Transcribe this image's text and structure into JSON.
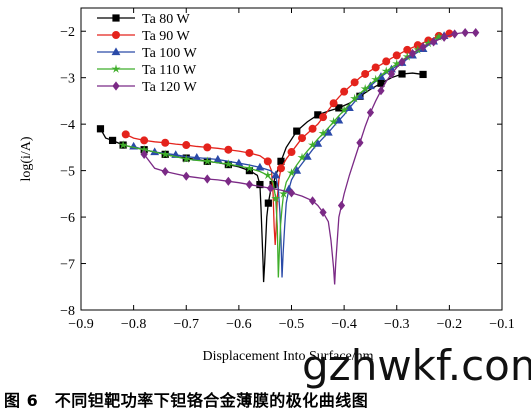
{
  "chart_data": {
    "type": "line",
    "title": "",
    "xlabel": "Displacement Into Surface/nm",
    "ylabel": "log(i/A)",
    "xlim": [
      -0.9,
      -0.1
    ],
    "ylim": [
      -8,
      -1.5
    ],
    "xticks": [
      -0.9,
      -0.8,
      -0.7,
      -0.6,
      -0.5,
      -0.4,
      -0.3,
      -0.2,
      -0.1
    ],
    "yticks": [
      -8,
      -7,
      -6,
      -5,
      -4,
      -3,
      -2
    ],
    "legend_position": "top-left",
    "series": [
      {
        "name": "Ta 80 W",
        "color": "#000000",
        "marker": "square",
        "x": [
          -0.863,
          -0.853,
          -0.84,
          -0.83,
          -0.82,
          -0.8,
          -0.78,
          -0.76,
          -0.74,
          -0.72,
          -0.7,
          -0.68,
          -0.66,
          -0.64,
          -0.62,
          -0.6,
          -0.58,
          -0.565,
          -0.56,
          -0.558,
          -0.556,
          -0.554,
          -0.553,
          -0.551,
          -0.549,
          -0.547,
          -0.544,
          -0.54,
          -0.535,
          -0.53,
          -0.52,
          -0.51,
          -0.49,
          -0.47,
          -0.45,
          -0.43,
          -0.41,
          -0.39,
          -0.37,
          -0.35,
          -0.33,
          -0.31,
          -0.29,
          -0.27,
          -0.25
        ],
        "y": [
          -4.1,
          -4.3,
          -4.35,
          -4.4,
          -4.45,
          -4.5,
          -4.55,
          -4.6,
          -4.65,
          -4.7,
          -4.73,
          -4.76,
          -4.8,
          -4.83,
          -4.87,
          -4.92,
          -5.0,
          -5.1,
          -5.3,
          -5.8,
          -6.4,
          -7.0,
          -7.4,
          -7.0,
          -6.5,
          -6.0,
          -5.7,
          -5.45,
          -5.3,
          -5.1,
          -4.8,
          -4.5,
          -4.15,
          -3.95,
          -3.8,
          -3.72,
          -3.65,
          -3.55,
          -3.4,
          -3.25,
          -3.12,
          -3.0,
          -2.92,
          -2.9,
          -2.93
        ]
      },
      {
        "name": "Ta 90 W",
        "color": "#e4231c",
        "marker": "circle",
        "x": [
          -0.815,
          -0.8,
          -0.78,
          -0.76,
          -0.74,
          -0.72,
          -0.7,
          -0.68,
          -0.66,
          -0.64,
          -0.62,
          -0.6,
          -0.58,
          -0.56,
          -0.545,
          -0.538,
          -0.535,
          -0.533,
          -0.531,
          -0.529,
          -0.527,
          -0.524,
          -0.52,
          -0.51,
          -0.5,
          -0.49,
          -0.48,
          -0.47,
          -0.46,
          -0.45,
          -0.44,
          -0.43,
          -0.42,
          -0.41,
          -0.4,
          -0.39,
          -0.38,
          -0.37,
          -0.36,
          -0.35,
          -0.34,
          -0.33,
          -0.32,
          -0.31,
          -0.3,
          -0.29,
          -0.28,
          -0.27,
          -0.26,
          -0.25,
          -0.24,
          -0.23,
          -0.22,
          -0.21,
          -0.2
        ],
        "y": [
          -4.22,
          -4.3,
          -4.35,
          -4.38,
          -4.4,
          -4.43,
          -4.45,
          -4.48,
          -4.5,
          -4.52,
          -4.55,
          -4.58,
          -4.62,
          -4.68,
          -4.8,
          -5.0,
          -5.5,
          -6.2,
          -6.6,
          -6.2,
          -5.6,
          -5.2,
          -4.95,
          -4.75,
          -4.6,
          -4.45,
          -4.3,
          -4.2,
          -4.1,
          -4.0,
          -3.85,
          -3.7,
          -3.55,
          -3.42,
          -3.3,
          -3.2,
          -3.1,
          -3.0,
          -2.92,
          -2.85,
          -2.78,
          -2.72,
          -2.65,
          -2.58,
          -2.52,
          -2.46,
          -2.4,
          -2.35,
          -2.3,
          -2.25,
          -2.2,
          -2.15,
          -2.1,
          -2.07,
          -2.05
        ]
      },
      {
        "name": "Ta 100 W",
        "color": "#2a4aa8",
        "marker": "triangle",
        "x": [
          -0.8,
          -0.78,
          -0.76,
          -0.74,
          -0.72,
          -0.7,
          -0.68,
          -0.66,
          -0.64,
          -0.62,
          -0.6,
          -0.58,
          -0.56,
          -0.54,
          -0.53,
          -0.525,
          -0.522,
          -0.52,
          -0.518,
          -0.516,
          -0.513,
          -0.51,
          -0.505,
          -0.5,
          -0.49,
          -0.48,
          -0.47,
          -0.46,
          -0.45,
          -0.44,
          -0.43,
          -0.42,
          -0.41,
          -0.4,
          -0.39,
          -0.38,
          -0.37,
          -0.36,
          -0.35,
          -0.34,
          -0.33,
          -0.32,
          -0.31,
          -0.3,
          -0.29,
          -0.28,
          -0.27,
          -0.26,
          -0.25,
          -0.24,
          -0.23,
          -0.22,
          -0.21
        ],
        "y": [
          -4.48,
          -4.55,
          -4.6,
          -4.63,
          -4.66,
          -4.7,
          -4.72,
          -4.74,
          -4.76,
          -4.8,
          -4.84,
          -4.88,
          -4.93,
          -5.0,
          -5.1,
          -5.4,
          -5.9,
          -6.5,
          -7.3,
          -6.8,
          -6.2,
          -5.7,
          -5.4,
          -5.2,
          -5.0,
          -4.85,
          -4.7,
          -4.55,
          -4.42,
          -4.3,
          -4.18,
          -4.05,
          -3.92,
          -3.8,
          -3.65,
          -3.52,
          -3.4,
          -3.28,
          -3.18,
          -3.08,
          -2.98,
          -2.9,
          -2.82,
          -2.75,
          -2.68,
          -2.6,
          -2.52,
          -2.45,
          -2.38,
          -2.3,
          -2.22,
          -2.15,
          -2.1
        ]
      },
      {
        "name": "Ta 110 W",
        "color": "#3fae2a",
        "marker": "star",
        "x": [
          -0.82,
          -0.8,
          -0.78,
          -0.76,
          -0.74,
          -0.72,
          -0.7,
          -0.68,
          -0.66,
          -0.64,
          -0.62,
          -0.6,
          -0.58,
          -0.56,
          -0.545,
          -0.535,
          -0.53,
          -0.527,
          -0.525,
          -0.523,
          -0.521,
          -0.518,
          -0.515,
          -0.51,
          -0.5,
          -0.49,
          -0.48,
          -0.47,
          -0.46,
          -0.45,
          -0.44,
          -0.43,
          -0.42,
          -0.41,
          -0.4,
          -0.39,
          -0.38,
          -0.37,
          -0.36,
          -0.35,
          -0.34,
          -0.33,
          -0.32,
          -0.31,
          -0.3,
          -0.29,
          -0.28,
          -0.27,
          -0.26,
          -0.25,
          -0.24,
          -0.23,
          -0.22,
          -0.21
        ],
        "y": [
          -4.45,
          -4.5,
          -4.55,
          -4.6,
          -4.65,
          -4.7,
          -4.75,
          -4.78,
          -4.8,
          -4.83,
          -4.86,
          -4.9,
          -4.95,
          -5.02,
          -5.1,
          -5.25,
          -5.6,
          -6.2,
          -7.3,
          -6.7,
          -6.2,
          -5.8,
          -5.5,
          -5.25,
          -5.05,
          -4.88,
          -4.72,
          -4.58,
          -4.45,
          -4.32,
          -4.2,
          -4.08,
          -3.95,
          -3.82,
          -3.7,
          -3.57,
          -3.45,
          -3.34,
          -3.24,
          -3.14,
          -3.04,
          -2.95,
          -2.86,
          -2.78,
          -2.7,
          -2.62,
          -2.55,
          -2.47,
          -2.4,
          -2.33,
          -2.26,
          -2.18,
          -2.12,
          -2.08
        ]
      },
      {
        "name": "Ta 120 W",
        "color": "#7b2a86",
        "marker": "diamond",
        "x": [
          -0.78,
          -0.76,
          -0.74,
          -0.72,
          -0.7,
          -0.68,
          -0.66,
          -0.64,
          -0.62,
          -0.6,
          -0.58,
          -0.56,
          -0.54,
          -0.52,
          -0.5,
          -0.48,
          -0.46,
          -0.45,
          -0.44,
          -0.43,
          -0.425,
          -0.42,
          -0.418,
          -0.416,
          -0.413,
          -0.41,
          -0.405,
          -0.4,
          -0.39,
          -0.38,
          -0.37,
          -0.36,
          -0.35,
          -0.34,
          -0.33,
          -0.32,
          -0.31,
          -0.3,
          -0.29,
          -0.28,
          -0.27,
          -0.26,
          -0.25,
          -0.24,
          -0.23,
          -0.22,
          -0.21,
          -0.2,
          -0.19,
          -0.18,
          -0.17,
          -0.16,
          -0.15
        ],
        "y": [
          -4.65,
          -4.95,
          -5.02,
          -5.07,
          -5.12,
          -5.15,
          -5.18,
          -5.2,
          -5.23,
          -5.26,
          -5.3,
          -5.34,
          -5.38,
          -5.42,
          -5.48,
          -5.55,
          -5.65,
          -5.75,
          -5.9,
          -6.1,
          -6.5,
          -7.1,
          -7.45,
          -7.0,
          -6.5,
          -6.0,
          -5.75,
          -5.5,
          -5.1,
          -4.75,
          -4.4,
          -4.05,
          -3.75,
          -3.5,
          -3.28,
          -3.08,
          -2.92,
          -2.78,
          -2.66,
          -2.56,
          -2.48,
          -2.4,
          -2.34,
          -2.28,
          -2.23,
          -2.18,
          -2.13,
          -2.09,
          -2.06,
          -2.04,
          -2.03,
          -2.03,
          -2.03
        ]
      }
    ]
  },
  "caption": "图 6　不同钽靶功率下钽铬合金薄膜的极化曲线图",
  "watermark": "gzhwkf.com"
}
